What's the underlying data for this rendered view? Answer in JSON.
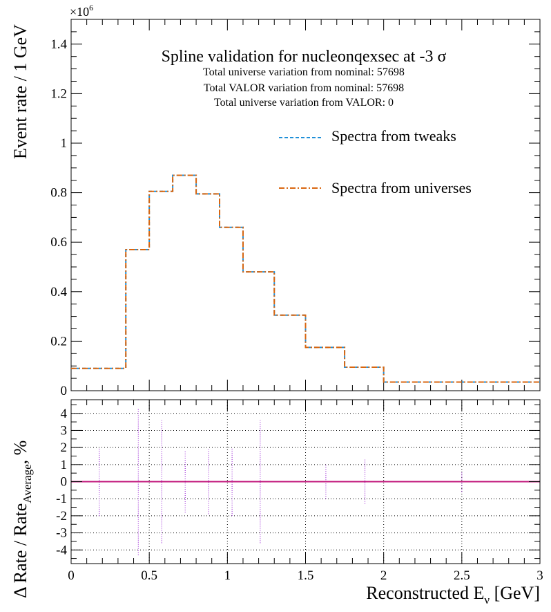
{
  "chart_data": [
    {
      "type": "line",
      "panel": "top",
      "title": "Spline validation for nucleonqexsec at -3 σ",
      "subtitles": [
        "Total universe variation from nominal: 57698",
        "Total VALOR variation from nominal: 57698",
        "Total universe variation from VALOR: 0"
      ],
      "ylabel": "Event rate / 1 GeV",
      "exponent_label": "×10",
      "exponent_power": "6",
      "xlim": [
        0,
        3
      ],
      "ylim": [
        0,
        1.5
      ],
      "yticks": [
        "0",
        "0.2",
        "0.4",
        "0.6",
        "0.8",
        "1",
        "1.2",
        "1.4"
      ],
      "grid": false,
      "legend_position": "top-right",
      "bin_edges": [
        0,
        0.35,
        0.5,
        0.65,
        0.8,
        0.95,
        1.1,
        1.3,
        1.5,
        1.75,
        2.0,
        3.0
      ],
      "series": [
        {
          "name": "Spectra from tweaks",
          "style": "dashed",
          "color": "#1f8fd8",
          "values": [
            0.09,
            0.57,
            0.805,
            0.87,
            0.795,
            0.66,
            0.48,
            0.305,
            0.175,
            0.095,
            0.035
          ]
        },
        {
          "name": "Spectra from universes",
          "style": "dash-dot",
          "color": "#d9660f",
          "values": [
            0.09,
            0.57,
            0.805,
            0.87,
            0.795,
            0.66,
            0.48,
            0.305,
            0.175,
            0.095,
            0.035
          ]
        }
      ]
    },
    {
      "type": "scatter",
      "panel": "bottom",
      "xlabel_main": "Reconstructed E",
      "xlabel_sub": "ν",
      "xlabel_unit": " [GeV]",
      "ylabel_main": "Δ Rate / Rate",
      "ylabel_sub": "Average",
      "ylabel_unit": ", %",
      "xlim": [
        0,
        3
      ],
      "ylim": [
        -4.8,
        4.8
      ],
      "xticks": [
        "0",
        "0.5",
        "1",
        "1.5",
        "2",
        "2.5",
        "3"
      ],
      "yticks": [
        "-4",
        "-3",
        "-2",
        "-1",
        "0",
        "1",
        "2",
        "3",
        "4"
      ],
      "grid": true,
      "reference_line": 0,
      "colors": {
        "zero_line": "#c0147a",
        "error_bars": "#a030d8",
        "grid": "#000000"
      },
      "points": [
        {
          "x": 0.18,
          "y": 0,
          "err": 2.0
        },
        {
          "x": 0.43,
          "y": 0,
          "err": 4.3
        },
        {
          "x": 0.58,
          "y": 0,
          "err": 3.6
        },
        {
          "x": 0.73,
          "y": 0,
          "err": 1.8
        },
        {
          "x": 0.88,
          "y": 0,
          "err": 1.9
        },
        {
          "x": 1.03,
          "y": 0,
          "err": 2.0
        },
        {
          "x": 1.21,
          "y": 0,
          "err": 3.6
        },
        {
          "x": 1.63,
          "y": 0,
          "err": 1.0
        },
        {
          "x": 1.88,
          "y": 0,
          "err": 1.3
        },
        {
          "x": 2.5,
          "y": 0,
          "err": 0.6
        }
      ]
    }
  ]
}
